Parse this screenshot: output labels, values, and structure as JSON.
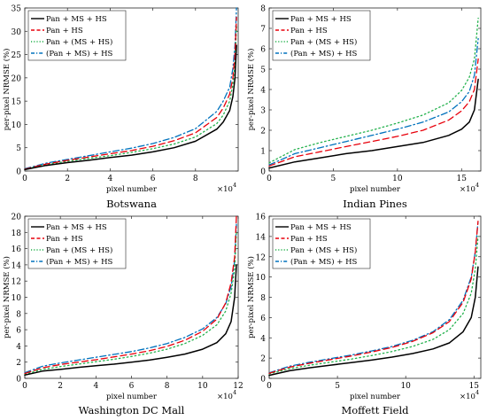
{
  "figure": {
    "legend_labels": [
      "Pan + MS + HS",
      "Pan + HS",
      "Pan + (MS + HS)",
      "(Pan + MS) + HS"
    ],
    "series_colors": [
      "#000000",
      "#e8000b",
      "#22b14c",
      "#0072bd"
    ],
    "series_dashes": [
      "",
      "7,4",
      "1.5,3",
      "7,3,1.5,3"
    ]
  },
  "chart_data": [
    {
      "type": "line",
      "title": "Botswana",
      "xlabel": "pixel number",
      "ylabel": "per-pixel NRMSE (%)",
      "x_multiplier_label": "×10",
      "x_multiplier_exp": "4",
      "xlim": [
        0,
        10
      ],
      "ylim": [
        0,
        35
      ],
      "xticks": [
        0,
        2,
        4,
        6,
        8
      ],
      "yticks": [
        0,
        5,
        10,
        15,
        20,
        25,
        30,
        35
      ],
      "legend": "top-left",
      "series": [
        {
          "name": "Pan + MS + HS",
          "x": [
            0,
            1,
            2,
            3,
            4,
            5,
            6,
            7,
            8,
            9,
            9.3,
            9.6,
            9.75,
            9.85,
            9.92
          ],
          "y": [
            0.3,
            1.2,
            1.8,
            2.3,
            2.9,
            3.4,
            4.1,
            5.0,
            6.4,
            9.0,
            10.5,
            13.0,
            16.0,
            20.0,
            27.0
          ]
        },
        {
          "name": "Pan + HS",
          "x": [
            0,
            1,
            2,
            3,
            4,
            5,
            6,
            7,
            8,
            9,
            9.3,
            9.6,
            9.75,
            9.85,
            9.92
          ],
          "y": [
            0.4,
            1.5,
            2.3,
            3.0,
            3.7,
            4.4,
            5.3,
            6.5,
            8.2,
            11.5,
            13.5,
            16.5,
            20.0,
            25.0,
            33.0
          ]
        },
        {
          "name": "Pan + (MS + HS)",
          "x": [
            0,
            1,
            2,
            3,
            4,
            5,
            6,
            7,
            8,
            9,
            9.3,
            9.6,
            9.75,
            9.85,
            9.92
          ],
          "y": [
            0.4,
            1.4,
            2.1,
            2.7,
            3.3,
            4.0,
            4.8,
            5.8,
            7.3,
            10.2,
            12.0,
            15.0,
            18.5,
            23.0,
            31.0
          ]
        },
        {
          "name": "(Pan + MS) + HS",
          "x": [
            0,
            1,
            2,
            3,
            4,
            5,
            6,
            7,
            8,
            9,
            9.3,
            9.6,
            9.75,
            9.85,
            9.92
          ],
          "y": [
            0.5,
            1.7,
            2.5,
            3.3,
            4.1,
            4.9,
            5.9,
            7.2,
            9.1,
            12.8,
            15.0,
            18.0,
            22.0,
            27.0,
            35.0
          ]
        }
      ]
    },
    {
      "type": "line",
      "title": "Indian Pines",
      "xlabel": "pixel number",
      "ylabel": "per-pixel NRMSE (%)",
      "x_multiplier_label": "×10",
      "x_multiplier_exp": "4",
      "xlim": [
        0,
        16.5
      ],
      "ylim": [
        0,
        8
      ],
      "xticks": [
        0,
        5,
        10,
        15
      ],
      "yticks": [
        0,
        1,
        2,
        3,
        4,
        5,
        6,
        7,
        8
      ],
      "legend": "top-left",
      "series": [
        {
          "name": "Pan + MS + HS",
          "x": [
            0,
            2,
            4,
            6,
            8,
            10,
            12,
            14,
            15,
            15.6,
            16.0,
            16.3
          ],
          "y": [
            0.15,
            0.45,
            0.65,
            0.85,
            1.0,
            1.2,
            1.4,
            1.75,
            2.05,
            2.4,
            3.0,
            4.5
          ]
        },
        {
          "name": "Pan + HS",
          "x": [
            0,
            2,
            4,
            6,
            8,
            10,
            12,
            14,
            15,
            15.6,
            16.0,
            16.3
          ],
          "y": [
            0.25,
            0.7,
            0.95,
            1.2,
            1.45,
            1.7,
            2.0,
            2.5,
            2.95,
            3.4,
            4.0,
            5.5
          ]
        },
        {
          "name": "Pan + (MS + HS)",
          "x": [
            0,
            2,
            4,
            6,
            8,
            10,
            12,
            14,
            15,
            15.6,
            16.0,
            16.3
          ],
          "y": [
            0.4,
            1.05,
            1.4,
            1.7,
            2.0,
            2.35,
            2.75,
            3.35,
            3.95,
            4.6,
            5.5,
            7.5
          ]
        },
        {
          "name": "(Pan + MS) + HS",
          "x": [
            0,
            2,
            4,
            6,
            8,
            10,
            12,
            14,
            15,
            15.6,
            16.0,
            16.3
          ],
          "y": [
            0.3,
            0.85,
            1.15,
            1.45,
            1.75,
            2.05,
            2.4,
            2.9,
            3.4,
            3.9,
            4.7,
            6.5
          ]
        }
      ]
    },
    {
      "type": "line",
      "title": "Washington DC Mall",
      "xlabel": "pixel number",
      "ylabel": "per-pixel NRMSE (%)",
      "x_multiplier_label": "×10",
      "x_multiplier_exp": "4",
      "xlim": [
        0,
        12
      ],
      "ylim": [
        0,
        20
      ],
      "xticks": [
        0,
        2,
        4,
        6,
        8,
        10,
        12
      ],
      "yticks": [
        0,
        2,
        4,
        6,
        8,
        10,
        12,
        14,
        16,
        18,
        20
      ],
      "legend": "top-left",
      "series": [
        {
          "name": "Pan + MS + HS",
          "x": [
            0,
            1,
            2,
            3,
            4,
            5,
            6,
            7,
            8,
            9,
            10,
            10.8,
            11.3,
            11.6,
            11.8,
            11.9
          ],
          "y": [
            0.4,
            0.9,
            1.1,
            1.35,
            1.55,
            1.75,
            2.0,
            2.25,
            2.6,
            3.0,
            3.6,
            4.4,
            5.5,
            7.0,
            10.0,
            14.0
          ]
        },
        {
          "name": "Pan + HS",
          "x": [
            0,
            1,
            2,
            3,
            4,
            5,
            6,
            7,
            8,
            9,
            10,
            10.8,
            11.3,
            11.6,
            11.8,
            11.9
          ],
          "y": [
            0.6,
            1.3,
            1.7,
            2.0,
            2.3,
            2.65,
            3.0,
            3.4,
            3.95,
            4.7,
            5.8,
            7.3,
            9.3,
            11.8,
            15.0,
            20.0
          ]
        },
        {
          "name": "Pan + (MS + HS)",
          "x": [
            0,
            1,
            2,
            3,
            4,
            5,
            6,
            7,
            8,
            9,
            10,
            10.8,
            11.3,
            11.6,
            11.8,
            11.9
          ],
          "y": [
            0.5,
            1.1,
            1.45,
            1.75,
            2.05,
            2.35,
            2.7,
            3.1,
            3.6,
            4.3,
            5.3,
            6.6,
            8.3,
            10.5,
            13.5,
            18.0
          ]
        },
        {
          "name": "(Pan + MS) + HS",
          "x": [
            0,
            1,
            2,
            3,
            4,
            5,
            6,
            7,
            8,
            9,
            10,
            10.8,
            11.3,
            11.6,
            11.8,
            11.9
          ],
          "y": [
            0.7,
            1.5,
            1.9,
            2.25,
            2.6,
            2.95,
            3.3,
            3.75,
            4.3,
            5.05,
            6.1,
            7.5,
            9.2,
            11.3,
            14.5,
            19.0
          ]
        }
      ]
    },
    {
      "type": "line",
      "title": "Moffett Field",
      "xlabel": "pixel number",
      "ylabel": "per-pixel NRMSE (%)",
      "x_multiplier_label": "×10",
      "x_multiplier_exp": "4",
      "xlim": [
        0,
        15.5
      ],
      "ylim": [
        0,
        16
      ],
      "xticks": [
        0,
        5,
        10,
        15
      ],
      "yticks": [
        0,
        2,
        4,
        6,
        8,
        10,
        12,
        14,
        16
      ],
      "legend": "top-left",
      "series": [
        {
          "name": "Pan + MS + HS",
          "x": [
            0,
            1.5,
            3,
            4.5,
            6,
            7.5,
            9,
            10.5,
            12,
            13.2,
            14.2,
            14.8,
            15.1,
            15.3
          ],
          "y": [
            0.3,
            0.75,
            1.05,
            1.3,
            1.55,
            1.8,
            2.1,
            2.45,
            2.9,
            3.5,
            4.6,
            6.0,
            8.0,
            11.0
          ]
        },
        {
          "name": "Pan + HS",
          "x": [
            0,
            1.5,
            3,
            4.5,
            6,
            7.5,
            9,
            10.5,
            12,
            13.2,
            14.2,
            14.8,
            15.1,
            15.3
          ],
          "y": [
            0.5,
            1.1,
            1.5,
            1.85,
            2.2,
            2.6,
            3.05,
            3.65,
            4.5,
            5.6,
            7.5,
            9.8,
            12.5,
            15.5
          ]
        },
        {
          "name": "Pan + (MS + HS)",
          "x": [
            0,
            1.5,
            3,
            4.5,
            6,
            7.5,
            9,
            10.5,
            12,
            13.2,
            14.2,
            14.8,
            15.1,
            15.3
          ],
          "y": [
            0.45,
            0.95,
            1.3,
            1.6,
            1.9,
            2.25,
            2.65,
            3.15,
            3.85,
            4.8,
            6.4,
            8.4,
            10.8,
            14.0
          ]
        },
        {
          "name": "(Pan + MS) + HS",
          "x": [
            0,
            1.5,
            3,
            4.5,
            6,
            7.5,
            9,
            10.5,
            12,
            13.2,
            14.2,
            14.8,
            15.1,
            15.3
          ],
          "y": [
            0.55,
            1.2,
            1.6,
            1.95,
            2.3,
            2.7,
            3.15,
            3.75,
            4.6,
            5.8,
            7.7,
            10.0,
            12.5,
            15.5
          ]
        }
      ]
    }
  ]
}
